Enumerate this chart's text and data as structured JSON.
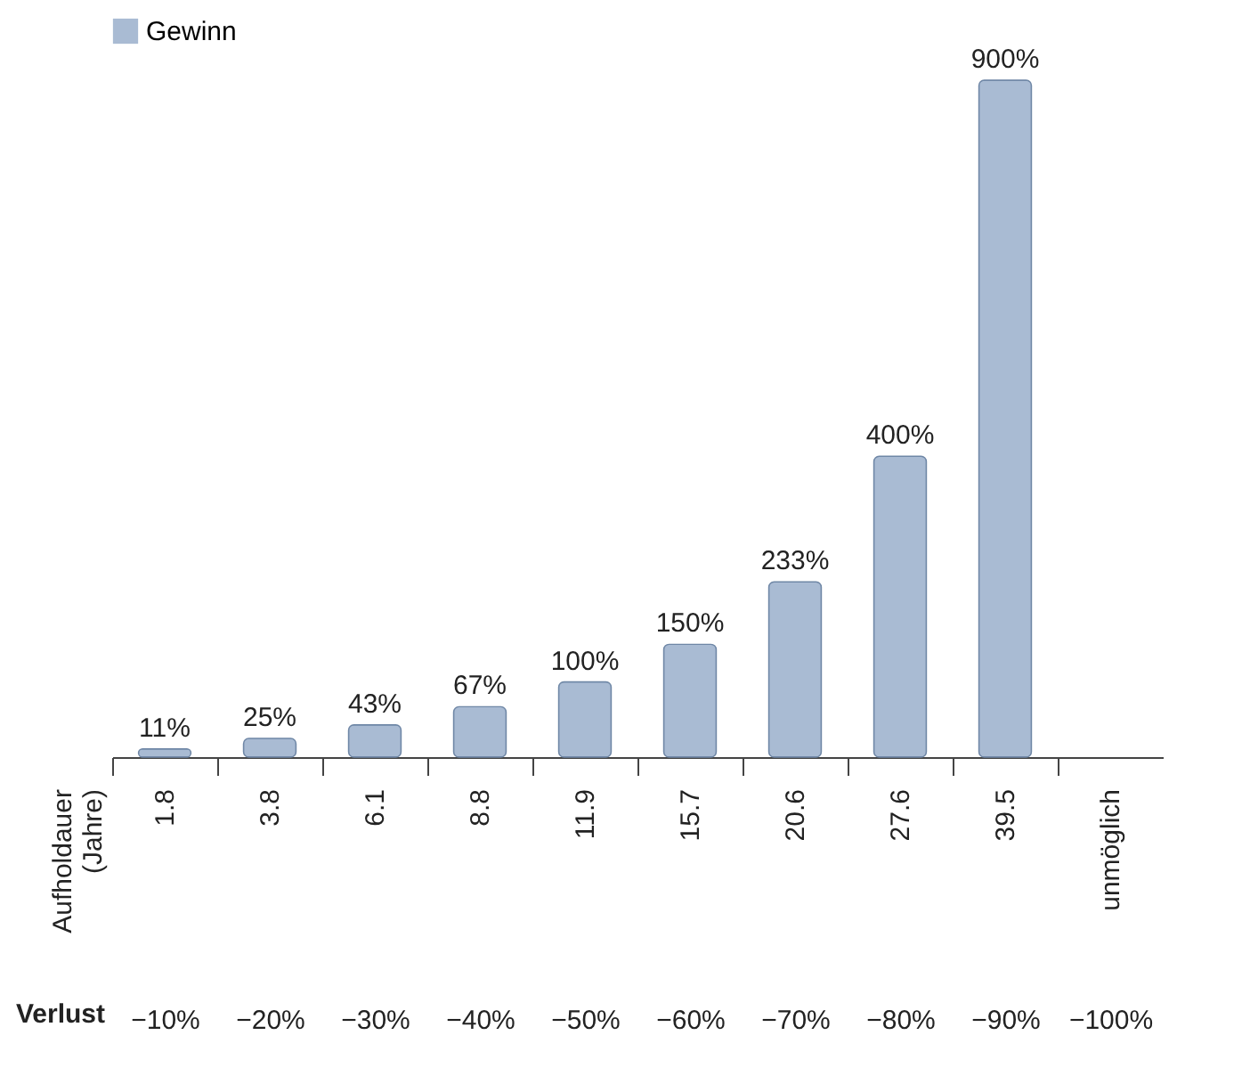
{
  "chart_data": {
    "type": "bar",
    "categories": [
      "−10%",
      "−20%",
      "−30%",
      "−40%",
      "−50%",
      "−60%",
      "−70%",
      "−80%",
      "−90%",
      "−100%"
    ],
    "series": [
      {
        "name": "Gewinn",
        "color": "#a9bbd3",
        "values": [
          11,
          25,
          43,
          67,
          100,
          150,
          233,
          400,
          900,
          null
        ],
        "value_labels": [
          "11%",
          "25%",
          "43%",
          "67%",
          "100%",
          "150%",
          "233%",
          "400%",
          "900%",
          null
        ]
      }
    ],
    "legend": "top",
    "annotations": [
      "1.8",
      "3.8",
      "6.1",
      "8.8",
      "11.9",
      "15.7",
      "20.6",
      "27.6",
      "39.5",
      "unmöglich",
      "Aufholdauer (Jahre)",
      "Verlust"
    ]
  }
}
